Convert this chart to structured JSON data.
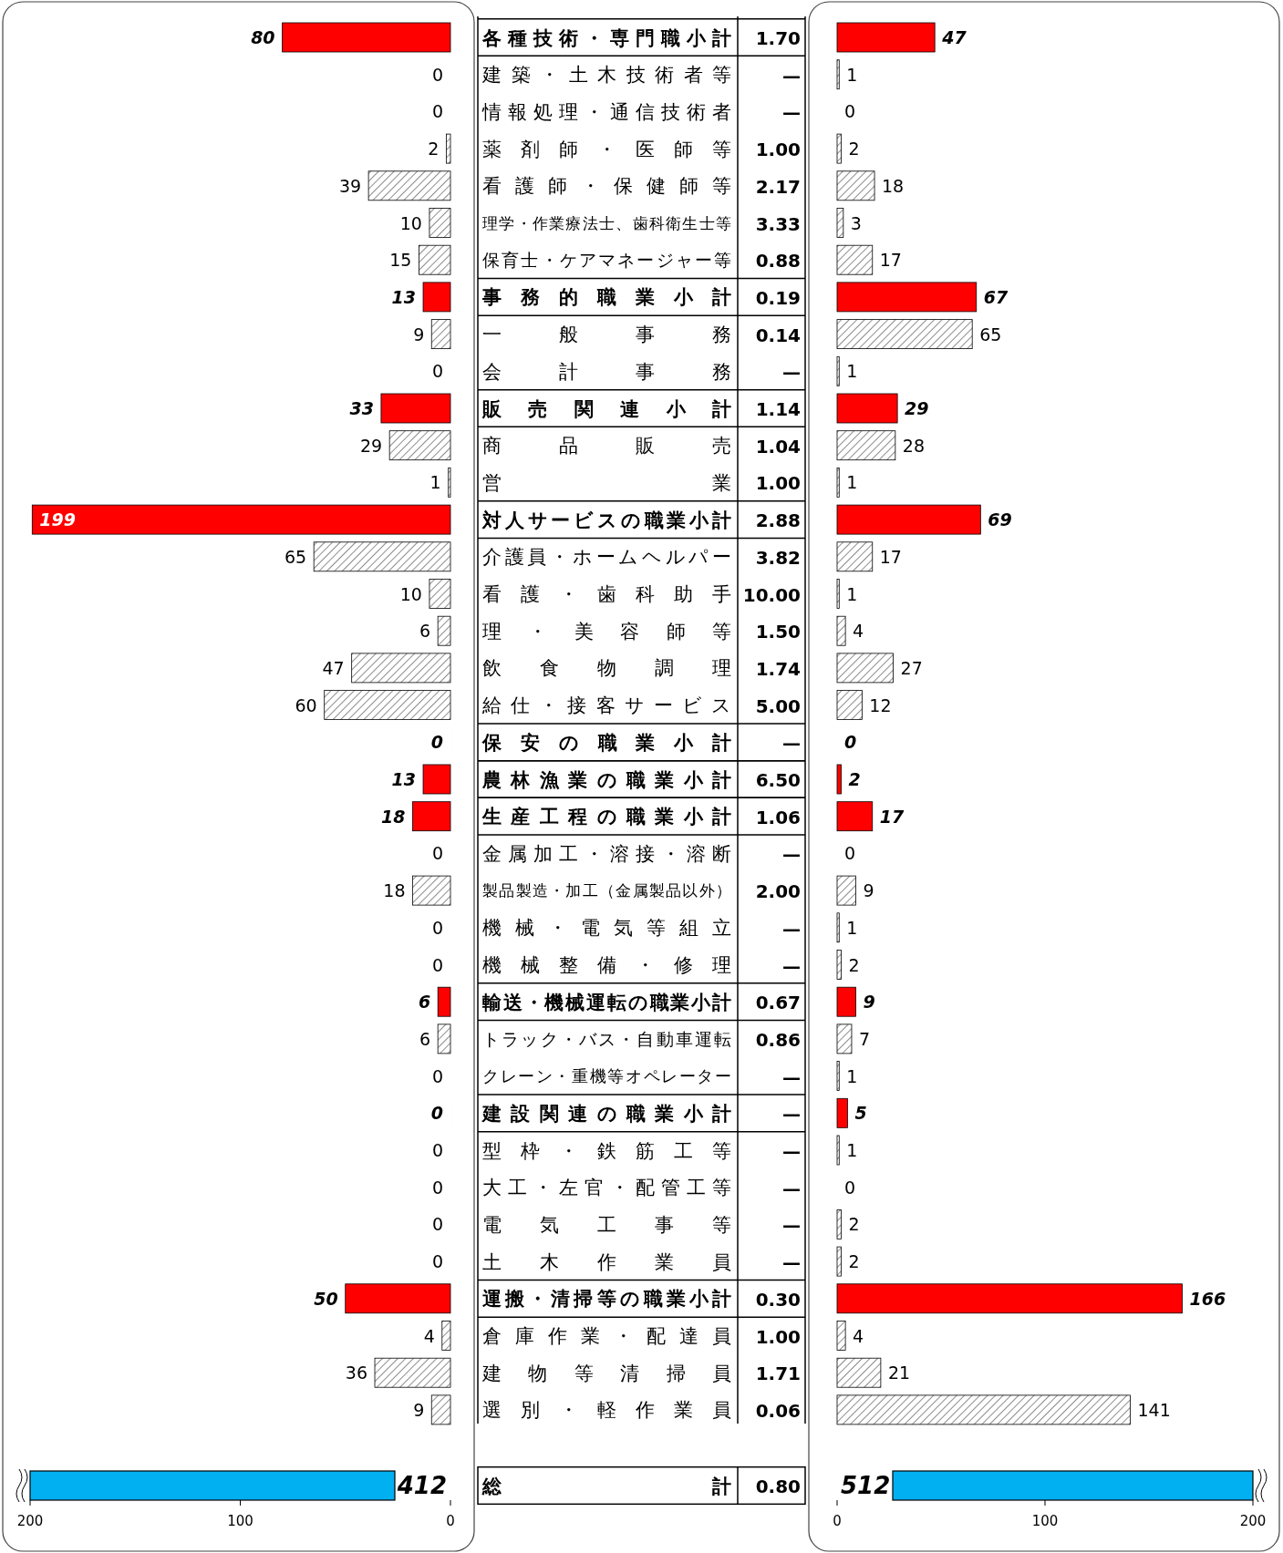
{
  "chart_data": [
    {
      "type": "bar",
      "orientation": "horizontal",
      "data_labels": true,
      "xlim": [
        200,
        0
      ],
      "xticks": [
        200,
        100,
        0
      ],
      "categories": [
        "各種技術・専門職小計",
        "建築・土木技術者等",
        "情報処理・通信技術者",
        "薬剤師・医師等",
        "看護師・保健師等",
        "理学・作業療法士、歯科衛生士等",
        "保育士・ケアマネージャー等",
        "事務的職業小計",
        "一般事務",
        "会計事務",
        "販売関連小計",
        "商品販売",
        "営業",
        "対人サービスの職業小計",
        "介護員・ホームヘルパー",
        "看護・歯科助手",
        "理・美容師等",
        "飲食物調理",
        "給仕・接客サービス",
        "保安の職業小計",
        "農林漁業の職業小計",
        "生産工程の職業小計",
        "金属加工・溶接・溶断",
        "製品製造・加工（金属製品以外）",
        "機械・電気等組立",
        "機械整備・修理",
        "輸送・機械運転の職業小計",
        "トラック・バス・自動車運転",
        "クレーン・重機等オペレーター",
        "建設関連の職業小計",
        "型枠・鉄筋工等",
        "大工・左官・配管工等",
        "電気工事等",
        "土木作業員",
        "運搬・清掃等の職業小計",
        "倉庫作業・配達員",
        "建物等清掃員",
        "選別・軽作業員"
      ],
      "values": [
        80,
        0,
        0,
        2,
        39,
        10,
        15,
        13,
        9,
        0,
        33,
        29,
        1,
        199,
        65,
        10,
        6,
        47,
        60,
        0,
        13,
        18,
        0,
        18,
        0,
        0,
        6,
        6,
        0,
        0,
        0,
        0,
        0,
        0,
        50,
        4,
        36,
        9
      ],
      "colors": [
        "#ff0000",
        "#ffffff",
        "#ffffff",
        "#ffffff",
        "#ffffff",
        "#ffffff",
        "#ffffff",
        "#ff0000",
        "#ffffff",
        "#ffffff",
        "#ff0000",
        "#ffffff",
        "#ffffff",
        "#ff0000",
        "#ffffff",
        "#ffffff",
        "#ffffff",
        "#ffffff",
        "#ffffff",
        "#ff0000",
        "#ff0000",
        "#ff0000",
        "#ffffff",
        "#ffffff",
        "#ffffff",
        "#ffffff",
        "#ff0000",
        "#ffffff",
        "#ffffff",
        "#ff0000",
        "#ffffff",
        "#ffffff",
        "#ffffff",
        "#ffffff",
        "#ff0000",
        "#ffffff",
        "#ffffff",
        "#ffffff"
      ]
    },
    {
      "type": "other",
      "value_labels": [
        "1.70",
        "—",
        "—",
        "1.00",
        "2.17",
        "3.33",
        "0.88",
        "0.19",
        "0.14",
        "—",
        "1.14",
        "1.04",
        "1.00",
        "2.88",
        "3.82",
        "10.00",
        "1.50",
        "1.74",
        "5.00",
        "—",
        "6.50",
        "1.06",
        "—",
        "2.00",
        "—",
        "—",
        "0.67",
        "0.86",
        "—",
        "—",
        "—",
        "—",
        "—",
        "—",
        "0.30",
        "1.00",
        "1.71",
        "0.06",
        "0.80"
      ]
    },
    {
      "type": "bar",
      "orientation": "horizontal",
      "data_labels": true,
      "xlim": [
        0,
        200
      ],
      "xticks": [
        0,
        100,
        200
      ],
      "tick_labels": "x",
      "values": [
        47,
        1,
        0,
        2,
        18,
        3,
        17,
        67,
        65,
        1,
        29,
        28,
        1,
        69,
        17,
        1,
        4,
        27,
        12,
        0,
        2,
        17,
        0,
        9,
        1,
        2,
        9,
        7,
        1,
        5,
        1,
        0,
        2,
        2,
        166,
        4,
        21,
        141
      ],
      "colors": [
        "#ff0000",
        "#ffffff",
        "#ffffff",
        "#ffffff",
        "#ffffff",
        "#ffffff",
        "#ffffff",
        "#ff0000",
        "#ffffff",
        "#ffffff",
        "#ff0000",
        "#ffffff",
        "#ffffff",
        "#ff0000",
        "#ffffff",
        "#ffffff",
        "#ffffff",
        "#ffffff",
        "#ffffff",
        "#ff0000",
        "#ff0000",
        "#ff0000",
        "#ffffff",
        "#ffffff",
        "#ffffff",
        "#ffffff",
        "#ff0000",
        "#ffffff",
        "#ffffff",
        "#ff0000",
        "#ffffff",
        "#ffffff",
        "#ffffff",
        "#ffffff",
        "#ff0000",
        "#ffffff",
        "#ffffff",
        "#ffffff"
      ]
    },
    {
      "type": "other",
      "data_labels": true,
      "categories": [
        "総計"
      ],
      "series": [
        {
          "color": "#00b0f0",
          "values": [
            412
          ]
        },
        {
          "color": "#00b0f0",
          "values": [
            512
          ]
        }
      ]
    }
  ]
}
